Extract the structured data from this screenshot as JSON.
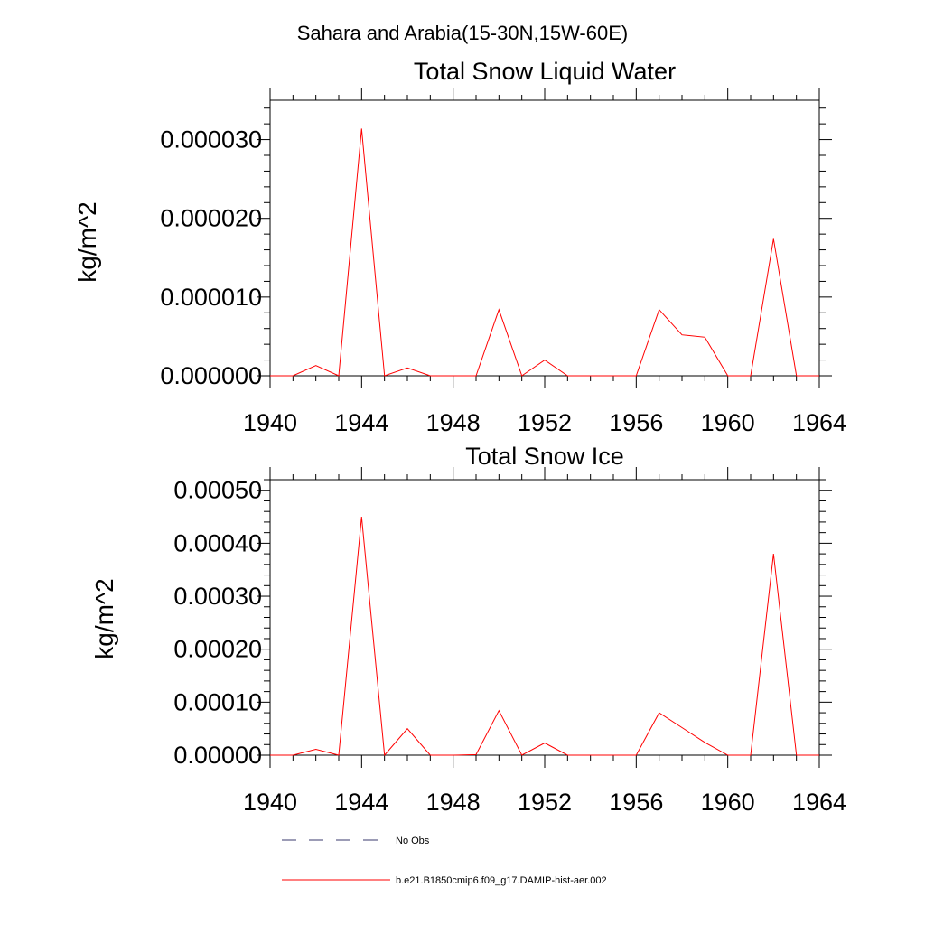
{
  "figure": {
    "main_title": "Sahara and Arabia(15-30N,15W-60E)"
  },
  "chart_data": [
    {
      "type": "line",
      "title": "Total Snow Liquid Water",
      "xlabel": "",
      "ylabel": "kg/m^2",
      "xlim": [
        1940,
        1964
      ],
      "ylim": [
        0,
        3.5e-05
      ],
      "x_ticks": [
        1940,
        1944,
        1948,
        1952,
        1956,
        1960,
        1964
      ],
      "x_tick_labels": [
        "1940",
        "1944",
        "1948",
        "1952",
        "1956",
        "1960",
        "1964"
      ],
      "y_ticks": [
        0,
        1e-05,
        2e-05,
        3e-05
      ],
      "y_tick_labels": [
        "0.000000",
        "0.000010",
        "0.000020",
        "0.000030"
      ],
      "grid": false,
      "series": [
        {
          "name": "b.e21.B1850cmip6.f09_g17.DAMIP-hist-aer.002",
          "color": "#ff0000",
          "x": [
            1940,
            1941,
            1942,
            1943,
            1944,
            1945,
            1946,
            1947,
            1948,
            1949,
            1950,
            1951,
            1952,
            1953,
            1954,
            1955,
            1956,
            1957,
            1958,
            1959,
            1960,
            1961,
            1962,
            1963,
            1964
          ],
          "y": [
            0,
            0,
            1.3e-06,
            0,
            3.14e-05,
            0,
            1e-06,
            0,
            0,
            0,
            8.4e-06,
            0,
            2e-06,
            0,
            0,
            0,
            0,
            8.4e-06,
            5.2e-06,
            4.9e-06,
            0,
            0,
            1.74e-05,
            0,
            0
          ]
        }
      ]
    },
    {
      "type": "line",
      "title": "Total Snow Ice",
      "xlabel": "",
      "ylabel": "kg/m^2",
      "xlim": [
        1940,
        1964
      ],
      "ylim": [
        0,
        0.00052
      ],
      "x_ticks": [
        1940,
        1944,
        1948,
        1952,
        1956,
        1960,
        1964
      ],
      "x_tick_labels": [
        "1940",
        "1944",
        "1948",
        "1952",
        "1956",
        "1960",
        "1964"
      ],
      "y_ticks": [
        0,
        0.0001,
        0.0002,
        0.0003,
        0.0004,
        0.0005
      ],
      "y_tick_labels": [
        "0.00000",
        "0.00010",
        "0.00020",
        "0.00030",
        "0.00040",
        "0.00050"
      ],
      "grid": false,
      "series": [
        {
          "name": "b.e21.B1850cmip6.f09_g17.DAMIP-hist-aer.002",
          "color": "#ff0000",
          "x": [
            1940,
            1941,
            1942,
            1943,
            1944,
            1945,
            1946,
            1947,
            1948,
            1949,
            1950,
            1951,
            1952,
            1953,
            1954,
            1955,
            1956,
            1957,
            1958,
            1959,
            1960,
            1961,
            1962,
            1963,
            1964
          ],
          "y": [
            0,
            0,
            1.1e-05,
            0,
            0.00045,
            0,
            5e-05,
            0,
            0,
            1e-06,
            8.4e-05,
            0,
            2.3e-05,
            0,
            0,
            0,
            0,
            8e-05,
            5.2e-05,
            2.4e-05,
            0,
            0,
            0.00038,
            0,
            0
          ]
        }
      ]
    }
  ],
  "legend": {
    "items": [
      {
        "label": "No Obs",
        "color": "#3a3a6e",
        "style": "dashed"
      },
      {
        "label": "b.e21.B1850cmip6.f09_g17.DAMIP-hist-aer.002",
        "color": "#ff0000",
        "style": "solid"
      }
    ]
  }
}
